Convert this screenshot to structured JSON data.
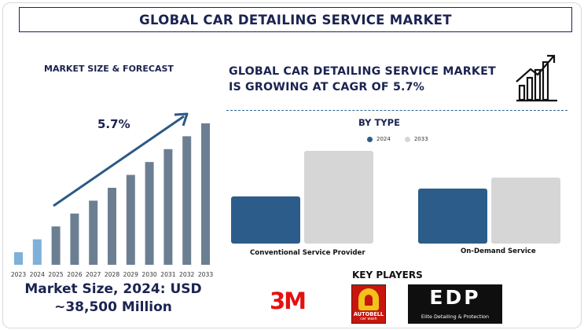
{
  "title": "GLOBAL CAR DETAILING SERVICE MARKET",
  "market_size_heading": "MARKET SIZE & FORECAST",
  "cagr_label": "5.7%",
  "headline": "GLOBAL CAR DETAILING SERVICE MARKET IS GROWING AT CAGR OF 5.7%",
  "market_size_text": "Market Size, 2024: USD ~38,500 Million",
  "key_players_heading": "KEY PLAYERS",
  "key_players": [
    {
      "name": "3M"
    },
    {
      "name": "AUTOBELL",
      "tagline": "car wash"
    },
    {
      "name": "EDP",
      "tagline": "Elite Detailing & Protection"
    }
  ],
  "colors": {
    "navy": "#1b2351",
    "bar_dark": "#2c5d8a",
    "bar_light": "#d6d6d6",
    "forecast_bar": "#6c7f92",
    "forecast_bar_highlight": "#7fb0d8"
  },
  "icons": [
    "growth-chart-icon",
    "trend-arrow-icon"
  ],
  "chart_data": [
    {
      "type": "bar",
      "categories": [
        "2023",
        "2024",
        "2025",
        "2026",
        "2027",
        "2028",
        "2029",
        "2030",
        "2031",
        "2032",
        "2033"
      ],
      "values": [
        1,
        2,
        3,
        4,
        5,
        6,
        7,
        8,
        9,
        10,
        11
      ],
      "title": "MARKET SIZE & FORECAST",
      "annotation": "5.7%",
      "grid": false
    },
    {
      "type": "bar",
      "title": "BY TYPE",
      "categories": [
        "Conventional Service Provider",
        "On-Demand Service"
      ],
      "series": [
        {
          "name": "2024",
          "values": [
            60,
            70
          ]
        },
        {
          "name": "2033",
          "values": [
            118,
            84
          ]
        }
      ],
      "ylim": [
        0,
        120
      ],
      "legend": "top-center",
      "grid": false
    }
  ]
}
